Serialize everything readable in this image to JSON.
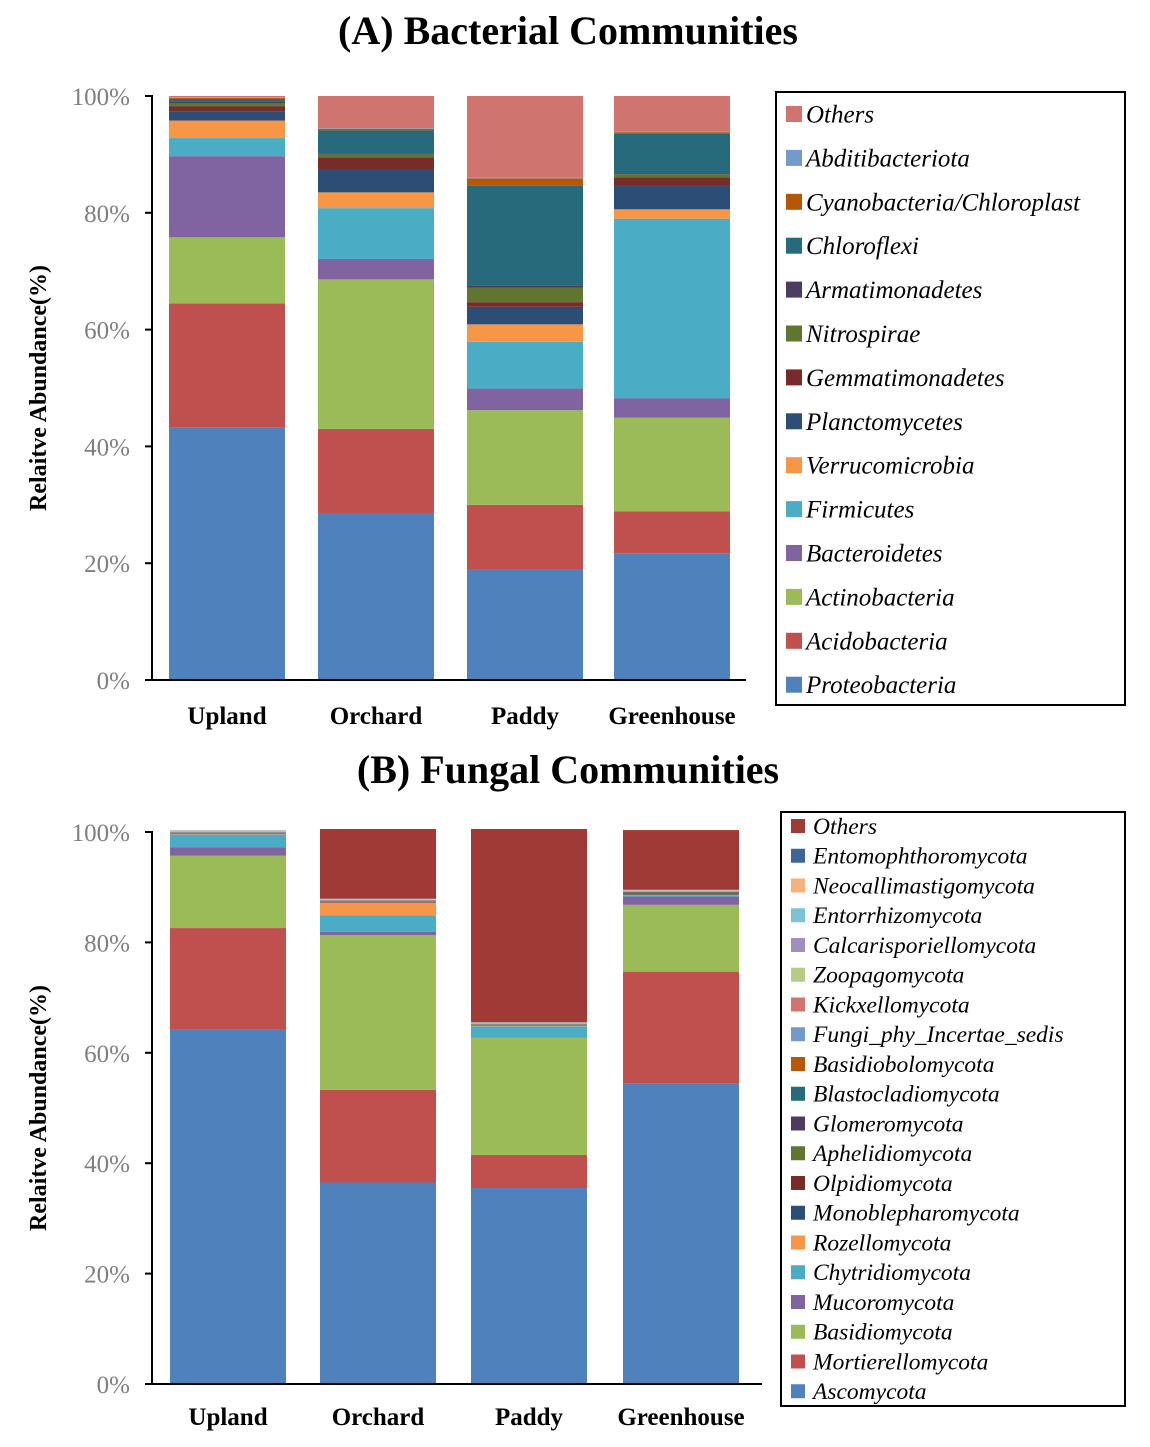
{
  "chart_data": [
    {
      "type": "bar",
      "stacked": true,
      "title": "(A) Bacterial Communities",
      "ylabel": "Relaitve Abundance(%)",
      "ylim": [
        0,
        100
      ],
      "yticks": [
        "0%",
        "20%",
        "40%",
        "60%",
        "80%",
        "100%"
      ],
      "categories": [
        "Upland",
        "Orchard",
        "Paddy",
        "Greenhouse"
      ],
      "series": [
        {
          "name": "Proteobacteria",
          "color": "#4F81BD",
          "values": [
            43.2,
            28.6,
            19.0,
            21.7
          ]
        },
        {
          "name": "Acidobacteria",
          "color": "#C0504D",
          "values": [
            21.3,
            14.4,
            11.0,
            7.2
          ]
        },
        {
          "name": "Actinobacteria",
          "color": "#9BBB59",
          "values": [
            11.3,
            25.6,
            16.2,
            16.0
          ]
        },
        {
          "name": "Bacteroidetes",
          "color": "#8064A2",
          "values": [
            13.9,
            3.5,
            3.7,
            3.3
          ]
        },
        {
          "name": "Firmicutes",
          "color": "#4BACC6",
          "values": [
            3.1,
            8.7,
            8.0,
            30.8
          ]
        },
        {
          "name": "Verrucomicrobia",
          "color": "#F79646",
          "values": [
            3.0,
            2.7,
            3.0,
            1.6
          ]
        },
        {
          "name": "Planctomycetes",
          "color": "#2C4D75",
          "values": [
            1.5,
            4.0,
            3.0,
            4.0
          ]
        },
        {
          "name": "Gemmatimonadetes",
          "color": "#772C2A",
          "values": [
            0.9,
            2.0,
            0.8,
            1.5
          ]
        },
        {
          "name": "Nitrospirae",
          "color": "#5F7530",
          "values": [
            0.6,
            0.5,
            2.5,
            0.5
          ]
        },
        {
          "name": "Armatimonadetes",
          "color": "#4D3B62",
          "values": [
            0.3,
            0.2,
            0.4,
            0.2
          ]
        },
        {
          "name": "Chloroflexi",
          "color": "#276A7C",
          "values": [
            0.4,
            3.9,
            17.0,
            6.8
          ]
        },
        {
          "name": "Cyanobacteria/Chloroplast",
          "color": "#B65708",
          "values": [
            0.2,
            0.3,
            1.3,
            0.2
          ]
        },
        {
          "name": "Abditibacteriota",
          "color": "#729ACA",
          "values": [
            0.1,
            0.1,
            0.1,
            0.1
          ]
        },
        {
          "name": "Others",
          "color": "#D07470",
          "values": [
            0.2,
            5.5,
            14.0,
            6.1
          ]
        }
      ]
    },
    {
      "type": "bar",
      "stacked": true,
      "title": "(B) Fungal Communities",
      "ylabel": "Relaitve Abundance(%)",
      "ylim": [
        0,
        100
      ],
      "yticks": [
        "0%",
        "20%",
        "40%",
        "60%",
        "80%",
        "100%"
      ],
      "categories": [
        "Upland",
        "Orchard",
        "Paddy",
        "Greenhouse"
      ],
      "series": [
        {
          "name": "Ascomycota",
          "color": "#4F81BD",
          "values": [
            64.3,
            36.5,
            35.5,
            54.4
          ]
        },
        {
          "name": "Mortierellomycota",
          "color": "#C0504D",
          "values": [
            18.3,
            16.8,
            6.0,
            20.3
          ]
        },
        {
          "name": "Basidiomycota",
          "color": "#9BBB59",
          "values": [
            13.1,
            28.0,
            21.2,
            12.1
          ]
        },
        {
          "name": "Mucoromycota",
          "color": "#8064A2",
          "values": [
            1.5,
            0.6,
            0.1,
            1.5
          ]
        },
        {
          "name": "Chytridiomycota",
          "color": "#4BACC6",
          "values": [
            2.3,
            3.0,
            2.0,
            0.2
          ]
        },
        {
          "name": "Rozellomycota",
          "color": "#F79646",
          "values": [
            0.1,
            2.3,
            0.1,
            0.1
          ]
        },
        {
          "name": "Monoblepharomycota",
          "color": "#2C4D75",
          "values": [
            0.05,
            0.1,
            0.05,
            0.05
          ]
        },
        {
          "name": "Olpidiomycota",
          "color": "#772C2A",
          "values": [
            0.05,
            0.05,
            0.05,
            0.1
          ]
        },
        {
          "name": "Aphelidiomycota",
          "color": "#5F7530",
          "values": [
            0.1,
            0.1,
            0.05,
            0.3
          ]
        },
        {
          "name": "Glomeromycota",
          "color": "#4D3B62",
          "values": [
            0.05,
            0.05,
            0.05,
            0.05
          ]
        },
        {
          "name": "Blastocladiomycota",
          "color": "#276A7C",
          "values": [
            0.05,
            0.05,
            0.05,
            0.05
          ]
        },
        {
          "name": "Basidiobolomycota",
          "color": "#B65708",
          "values": [
            0.05,
            0.05,
            0.05,
            0.05
          ]
        },
        {
          "name": "Fungi_phy_Incertae_sedis",
          "color": "#729ACA",
          "values": [
            0.05,
            0.05,
            0.05,
            0.05
          ]
        },
        {
          "name": "Kickxellomycota",
          "color": "#D07470",
          "values": [
            0.05,
            0.05,
            0.05,
            0.05
          ]
        },
        {
          "name": "Zoopagomycota",
          "color": "#B5CC85",
          "values": [
            0.05,
            0.05,
            0.05,
            0.05
          ]
        },
        {
          "name": "Calcarisporiellomycota",
          "color": "#A08EBB",
          "values": [
            0.05,
            0.05,
            0.05,
            0.05
          ]
        },
        {
          "name": "Entorrhizomycota",
          "color": "#7CC3D6",
          "values": [
            0.05,
            0.05,
            0.05,
            0.05
          ]
        },
        {
          "name": "Neocallimastigomycota",
          "color": "#F9B17A",
          "values": [
            0.05,
            0.05,
            0.05,
            0.05
          ]
        },
        {
          "name": "Entomophthoromycota",
          "color": "#3A6698",
          "values": [
            0.05,
            0.05,
            0.05,
            0.05
          ]
        },
        {
          "name": "Others",
          "color": "#A03A37",
          "values": [
            0.0,
            12.6,
            35.0,
            10.8
          ]
        }
      ]
    }
  ]
}
